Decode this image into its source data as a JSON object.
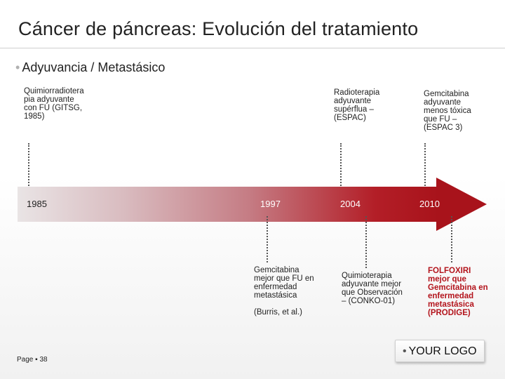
{
  "title": "Cáncer de páncreas: Evolución del tratamiento",
  "subtitle": {
    "bullet": "•",
    "text": "Adyuvancia / Metastásico"
  },
  "timeline": {
    "years": [
      "1985",
      "1997",
      "2004",
      "2010"
    ]
  },
  "top_notes": {
    "gitsg": [
      "Quimiorradiotera",
      "pia adyuvante",
      "con FU (GITSG,",
      "1985)"
    ],
    "espac": [
      "Radioterapia",
      "adyuvante",
      "supérflua –",
      "(ESPAC)"
    ],
    "espac3": [
      "Gemcitabina",
      "adyuvante",
      "menos tóxica",
      "que FU –",
      "(ESPAC 3)"
    ]
  },
  "bottom_notes": {
    "burris": [
      "Gemcitabina",
      "mejor que FU en",
      "enfermedad",
      "metastásica"
    ],
    "burris_ref": "(Burris, et al.)",
    "conko": [
      "Quimioterapia",
      "adyuvante mejor",
      "que Observación",
      "– (CONKO-01)"
    ],
    "prodige": [
      "FOLFOXIRI",
      "mejor que",
      "Gemcitabina en",
      "enfermedad",
      "metastásica",
      "(PRODIGE)"
    ]
  },
  "logo": {
    "bullet": "•",
    "text": "YOUR LOGO"
  },
  "footer": {
    "page_label": "Page",
    "separator": "▪",
    "page_number": "38"
  },
  "colors": {
    "accent_red": "#a8131b",
    "note_red": "#b3141c"
  }
}
